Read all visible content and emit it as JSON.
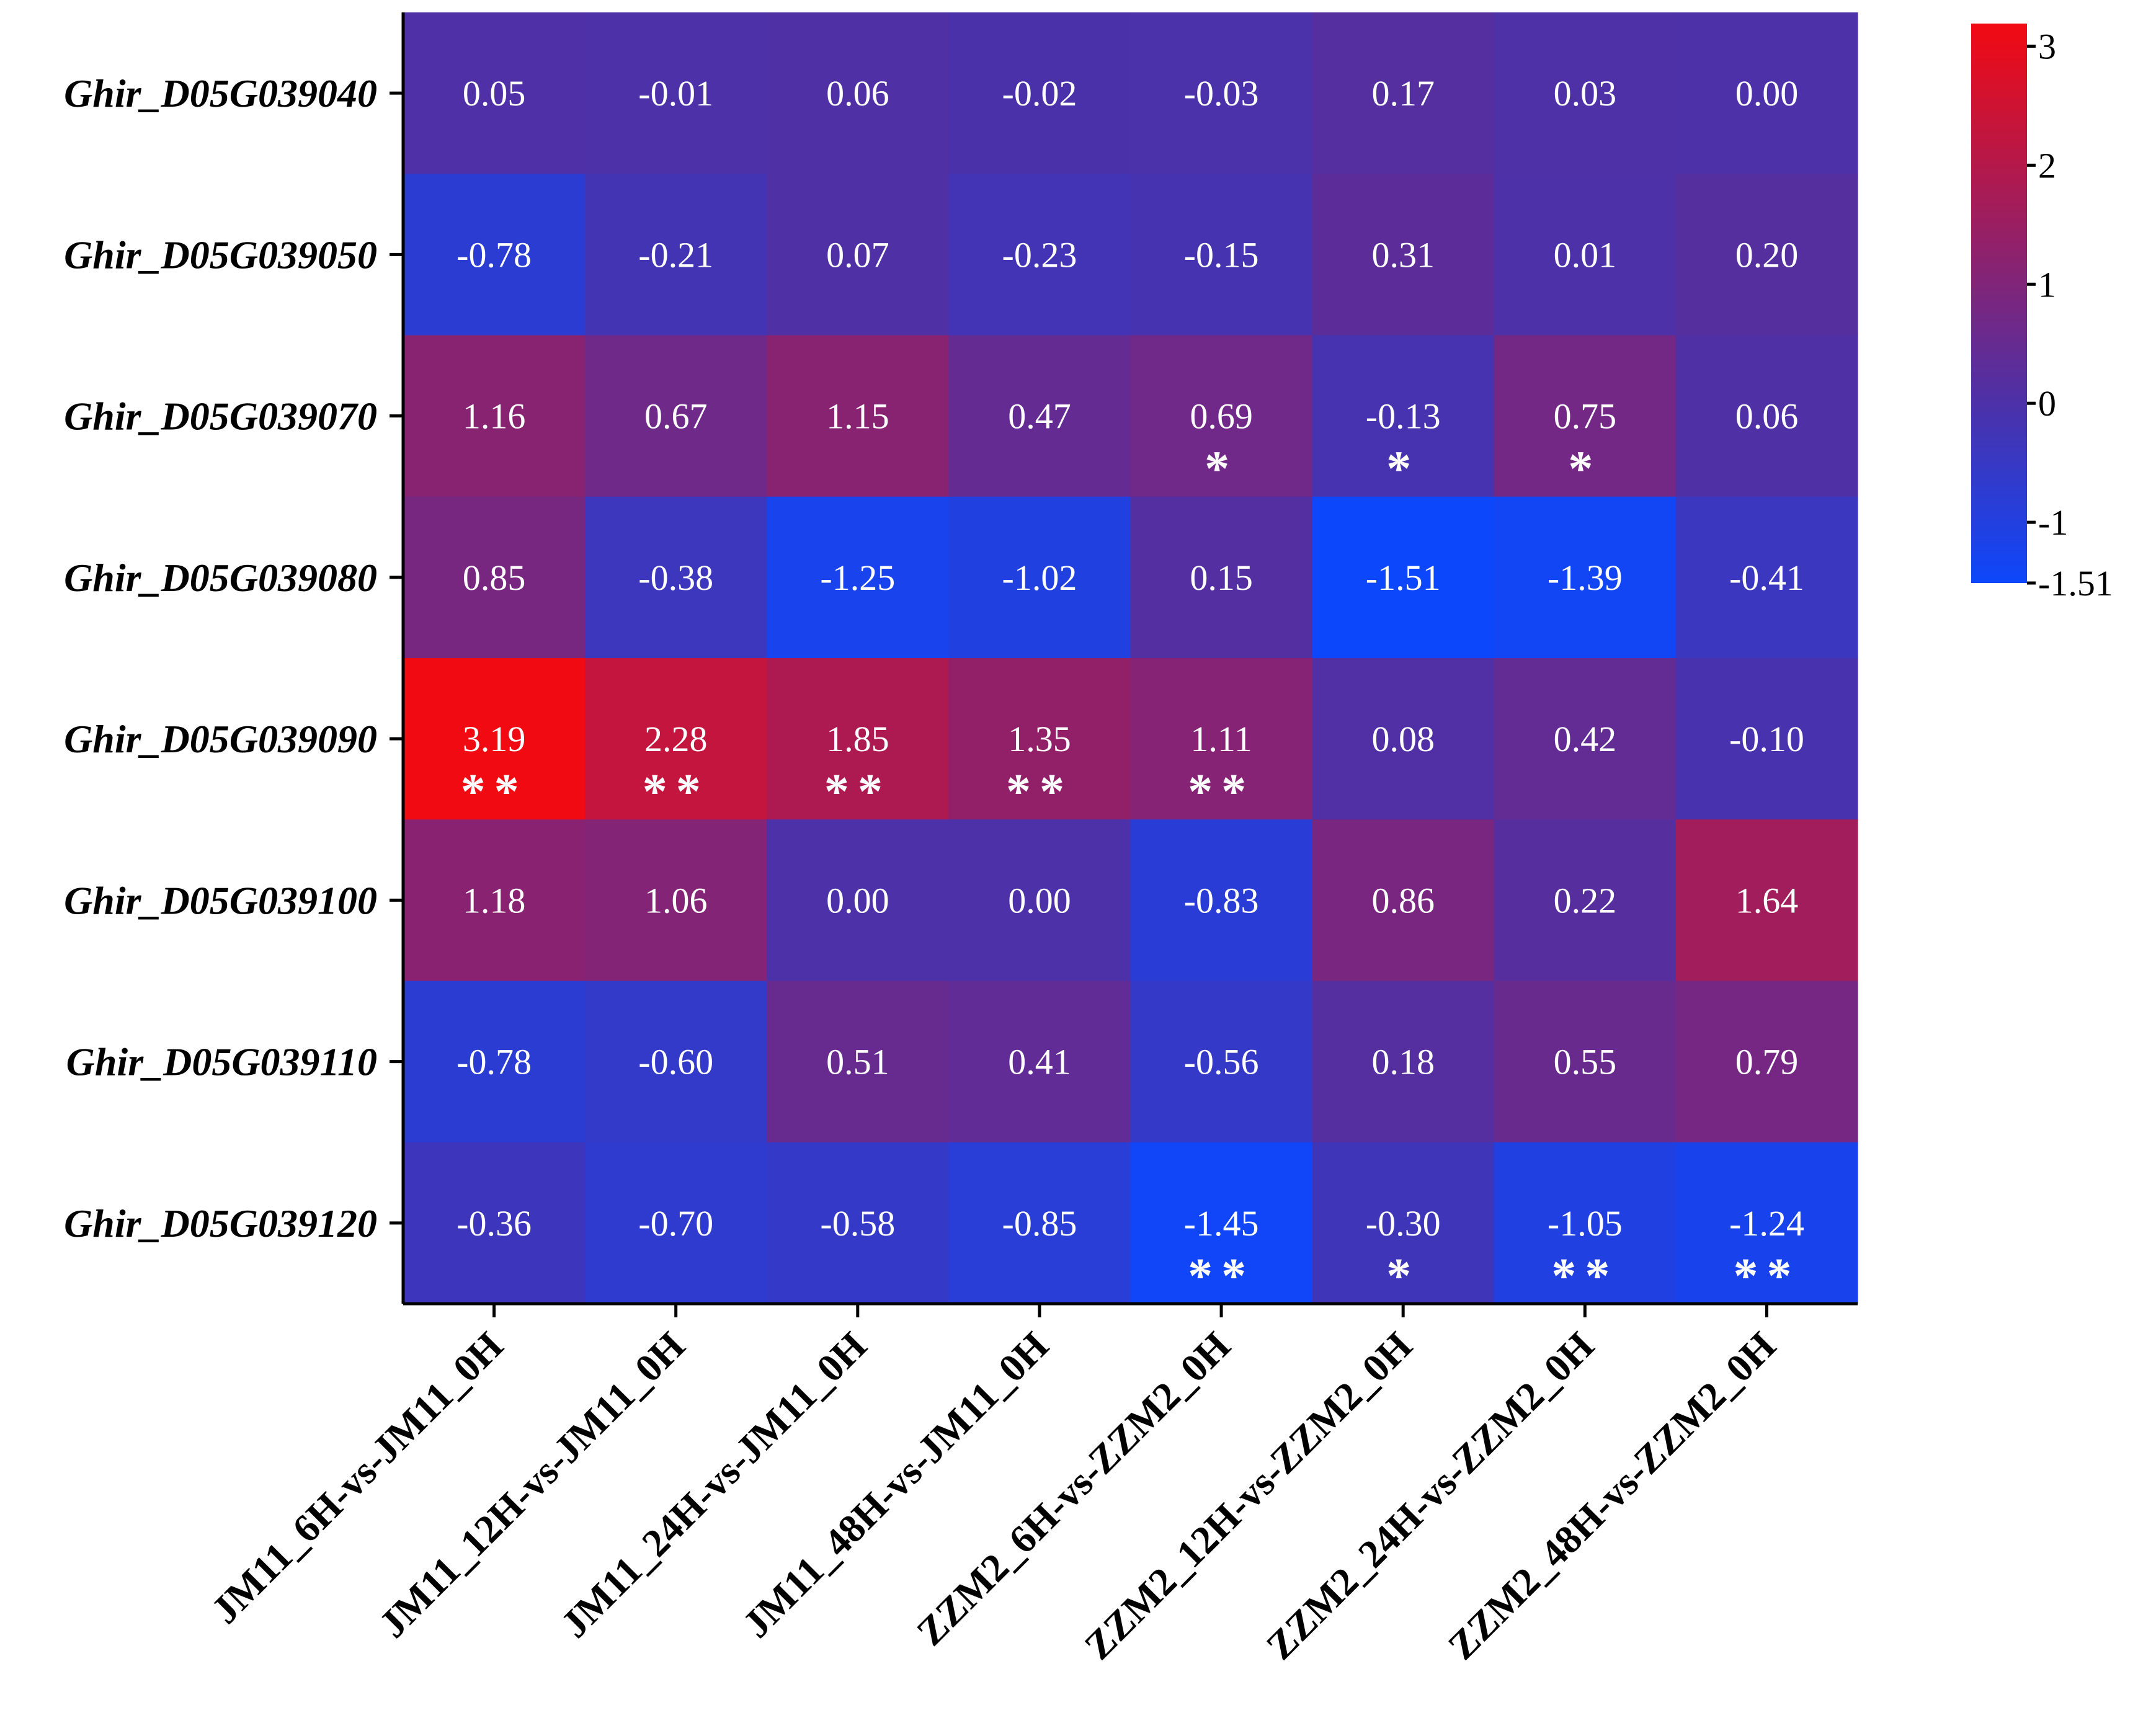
{
  "chart_data": {
    "type": "heatmap",
    "rows": [
      "Ghir_D05G039040",
      "Ghir_D05G039050",
      "Ghir_D05G039070",
      "Ghir_D05G039080",
      "Ghir_D05G039090",
      "Ghir_D05G039100",
      "Ghir_D05G039110",
      "Ghir_D05G039120"
    ],
    "columns": [
      "JM11_6H-vs-JM11_0H",
      "JM11_12H-vs-JM11_0H",
      "JM11_24H-vs-JM11_0H",
      "JM11_48H-vs-JM11_0H",
      "ZZM2_6H-vs-ZZM2_0H",
      "ZZM2_12H-vs-ZZM2_0H",
      "ZZM2_24H-vs-ZZM2_0H",
      "ZZM2_48H-vs-ZZM2_0H"
    ],
    "values": [
      [
        "0.05",
        "-0.01",
        "0.06",
        "-0.02",
        "-0.03",
        "0.17",
        "0.03",
        "0.00"
      ],
      [
        "-0.78",
        "-0.21",
        "0.07",
        "-0.23",
        "-0.15",
        "0.31",
        "0.01",
        "0.20"
      ],
      [
        "1.16",
        "0.67",
        "1.15",
        "0.47",
        "0.69",
        "-0.13",
        "0.75",
        "0.06"
      ],
      [
        "0.85",
        "-0.38",
        "-1.25",
        "-1.02",
        "0.15",
        "-1.51",
        "-1.39",
        "-0.41"
      ],
      [
        "3.19",
        "2.28",
        "1.85",
        "1.35",
        "1.11",
        "0.08",
        "0.42",
        "-0.10"
      ],
      [
        "1.18",
        "1.06",
        "0.00",
        "0.00",
        "-0.83",
        "0.86",
        "0.22",
        "1.64"
      ],
      [
        "-0.78",
        "-0.60",
        "0.51",
        "0.41",
        "-0.56",
        "0.18",
        "0.55",
        "0.79"
      ],
      [
        "-0.36",
        "-0.70",
        "-0.58",
        "-0.85",
        "-1.45",
        "-0.30",
        "-1.05",
        "-1.24"
      ]
    ],
    "significance": [
      [
        "",
        "",
        "",
        "",
        "",
        "",
        "",
        ""
      ],
      [
        "",
        "",
        "",
        "",
        "",
        "",
        "",
        ""
      ],
      [
        "",
        "",
        "",
        "",
        "*",
        "*",
        "*",
        ""
      ],
      [
        "",
        "",
        "",
        "",
        "",
        "",
        "",
        ""
      ],
      [
        "**",
        "**",
        "**",
        "**",
        "**",
        "",
        "",
        ""
      ],
      [
        "",
        "",
        "",
        "",
        "",
        "",
        "",
        ""
      ],
      [
        "",
        "",
        "",
        "",
        "",
        "",
        "",
        ""
      ],
      [
        "",
        "",
        "",
        "",
        "**",
        "*",
        "**",
        "**"
      ]
    ],
    "colorscale": {
      "min": -1.51,
      "mid": 0,
      "max": 3.19,
      "low_color": "#0d47fb",
      "mid_color": "#4c31a8",
      "high_color": "#f20a12"
    },
    "legend": {
      "ticks": [
        "3",
        "2",
        "1",
        "0",
        "-1",
        "-1.51"
      ],
      "tick_values": [
        3,
        2,
        1,
        0,
        -1,
        -1.51
      ],
      "placement": "top-right"
    }
  }
}
